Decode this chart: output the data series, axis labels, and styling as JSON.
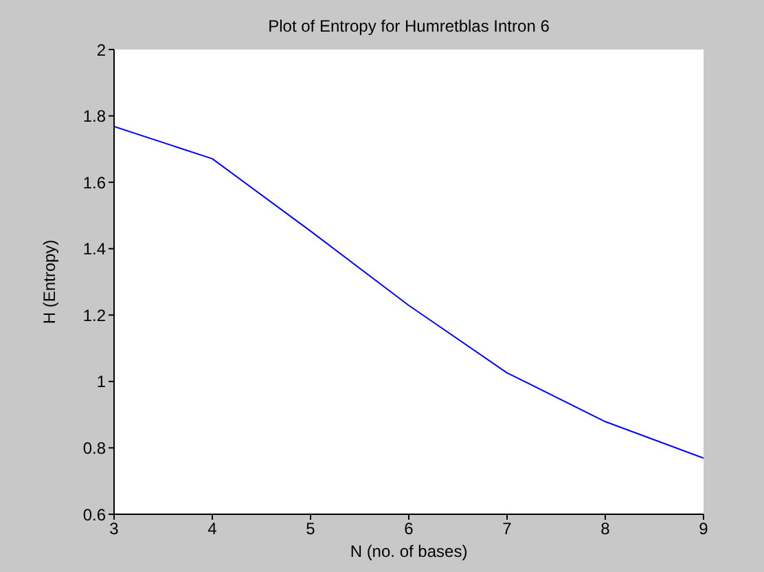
{
  "chart_data": {
    "type": "line",
    "title": "Plot of Entropy for Humretblas Intron 6",
    "xlabel": "N (no. of bases)",
    "ylabel": "H (Entropy)",
    "x": [
      3,
      4,
      5,
      6,
      7,
      8,
      9
    ],
    "series": [
      {
        "color": "#0000ff",
        "values": [
          1.768,
          1.671,
          1.453,
          1.229,
          1.026,
          0.879,
          0.769
        ]
      }
    ],
    "xlim": [
      3,
      9
    ],
    "xticks": [
      3,
      4,
      5,
      6,
      7,
      8,
      9
    ],
    "ylim": [
      0.6,
      2
    ],
    "yticks": [
      0.6,
      0.8,
      1,
      1.2,
      1.4,
      1.6,
      1.8,
      2
    ],
    "grid": false,
    "legend": false,
    "marker": "none",
    "line_style": "solid"
  }
}
